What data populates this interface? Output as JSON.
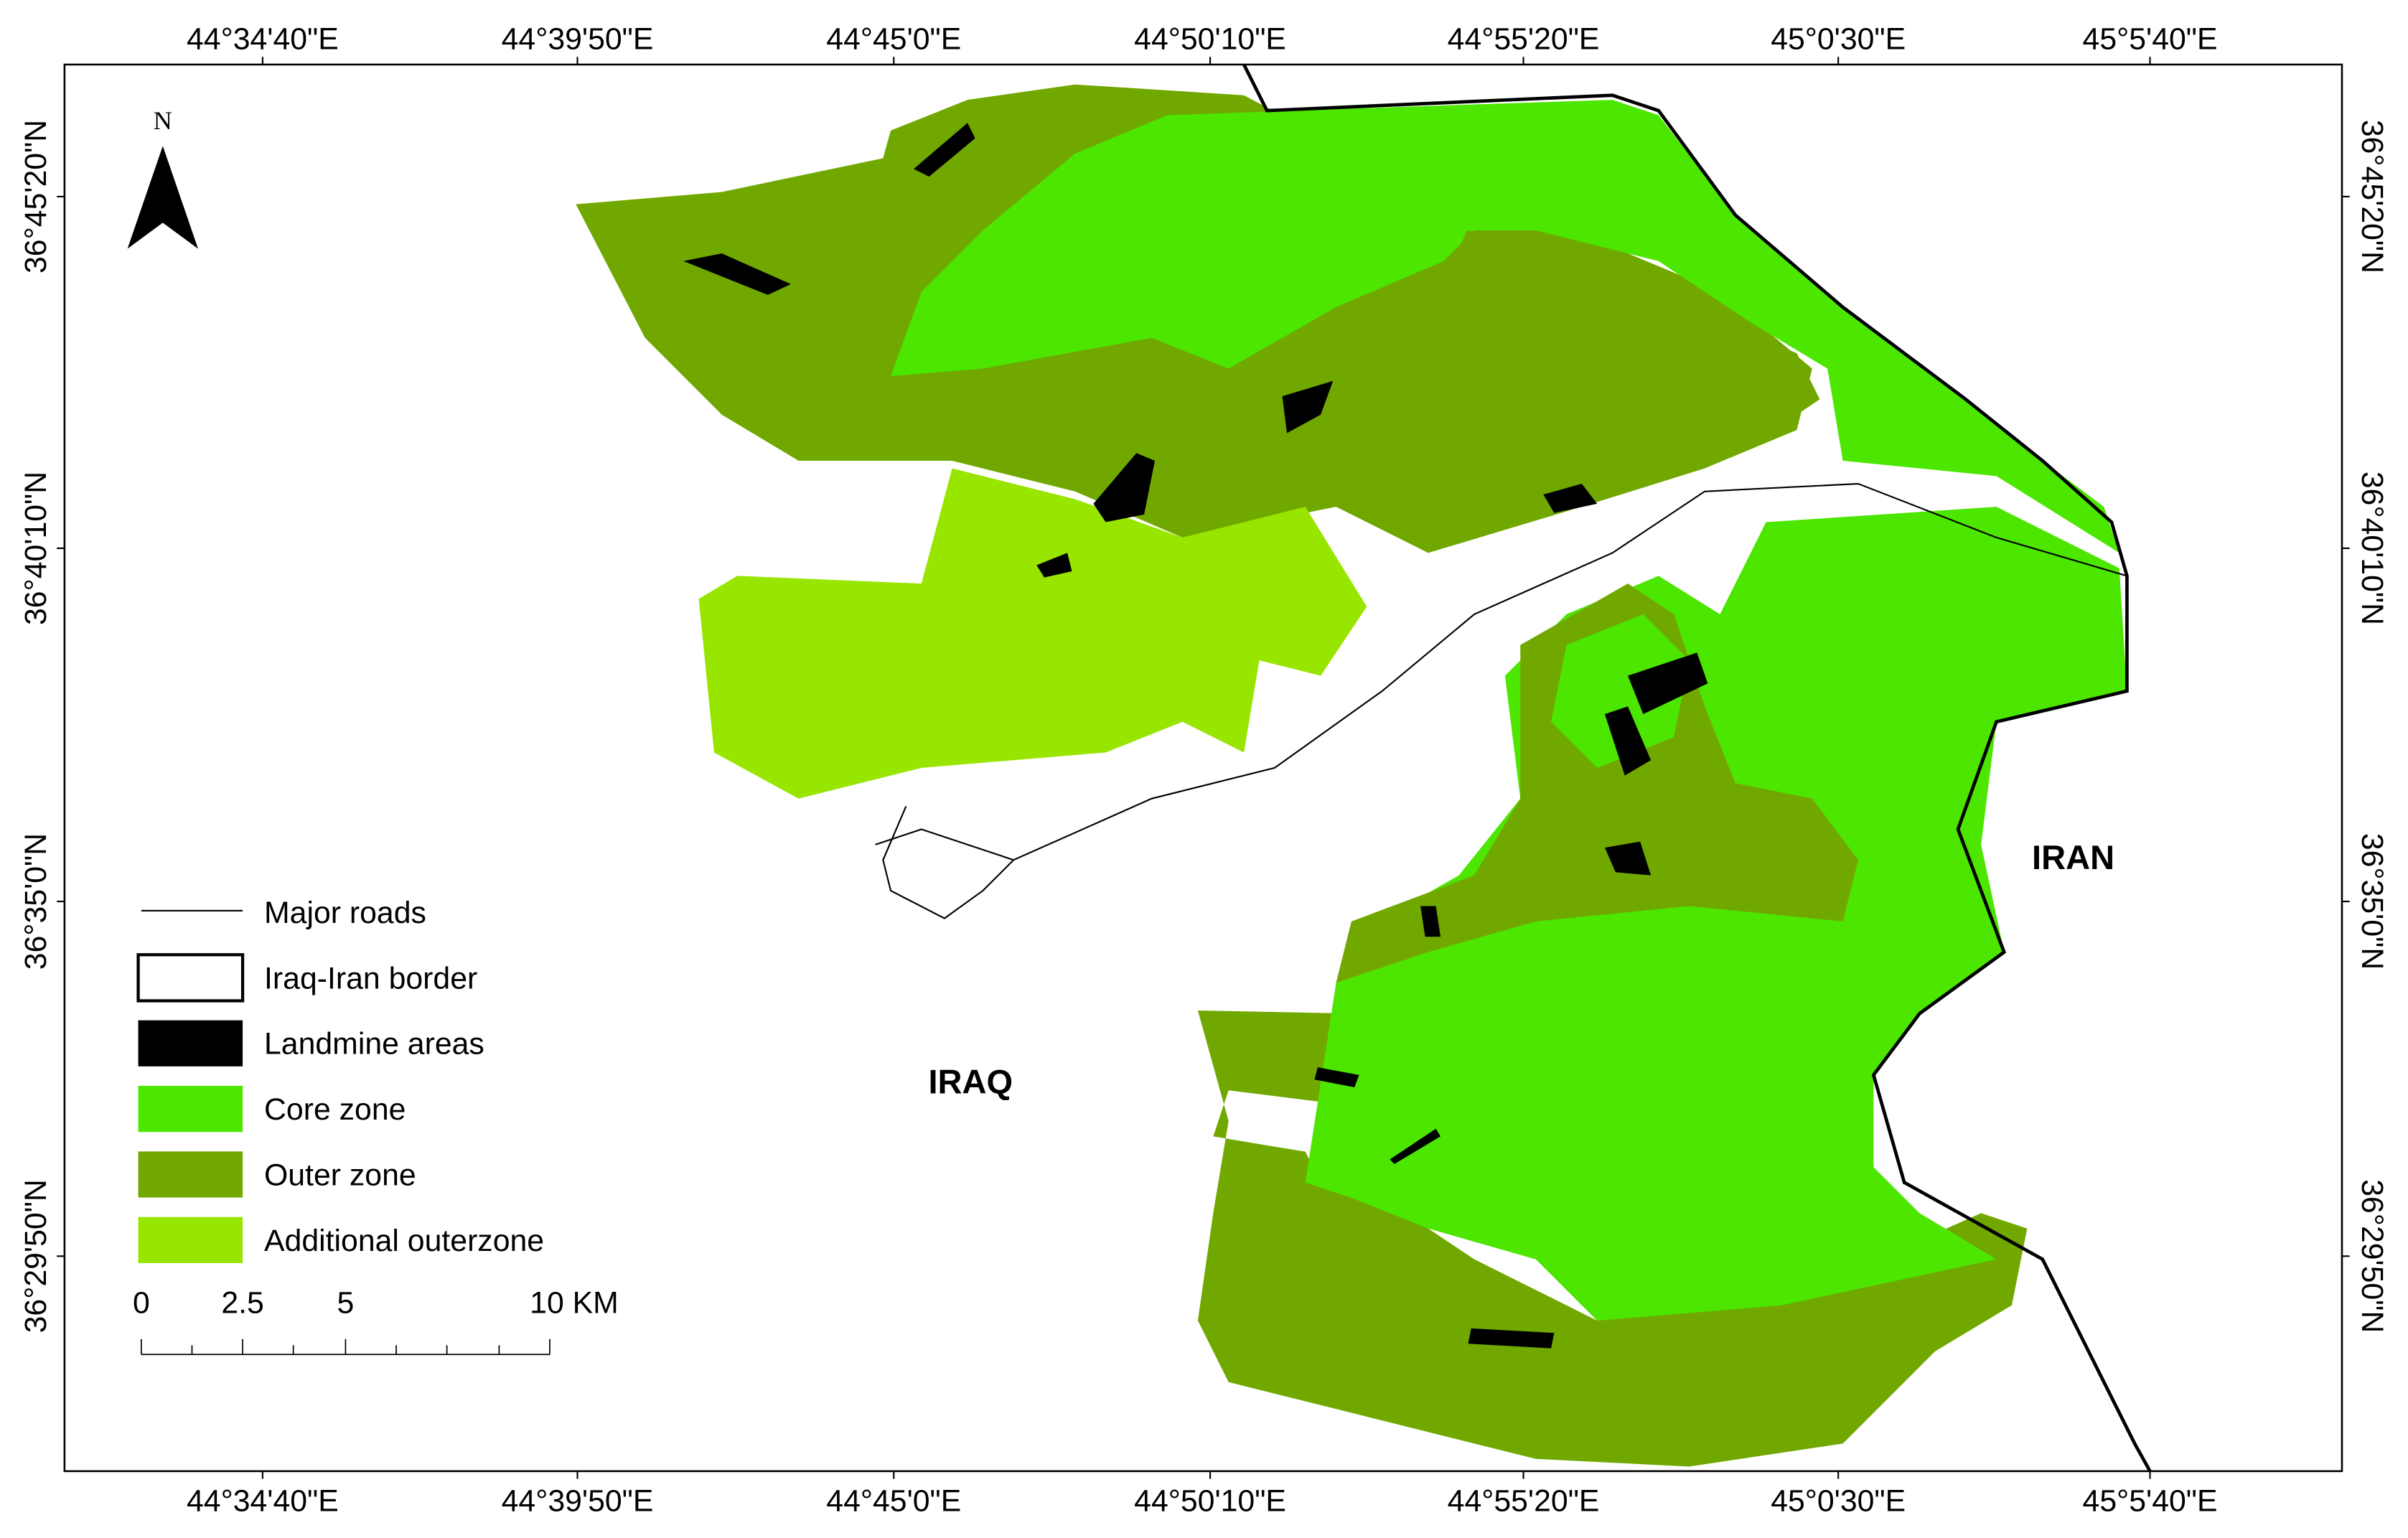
{
  "map": {
    "lon_labels": [
      "44°34'40\"E",
      "44°39'50\"E",
      "44°45'0\"E",
      "44°50'10\"E",
      "44°55'20\"E",
      "45°0'30\"E",
      "45°5'40\"E"
    ],
    "lat_labels": [
      "36°45'20\"N",
      "36°40'10\"N",
      "36°35'0\"N",
      "36°29'50\"N"
    ],
    "north": "N",
    "places": [
      "IRAQ",
      "IRAN"
    ],
    "legend": [
      {
        "label": "Major roads",
        "color": "#000000"
      },
      {
        "label": "Iraq-Iran border",
        "color": "#ffffff"
      },
      {
        "label": "Landmine areas",
        "color": "#000000"
      },
      {
        "label": "Core zone",
        "color": "#4ce600"
      },
      {
        "label": "Outer zone",
        "color": "#70a800"
      },
      {
        "label": "Additional outerzone",
        "color": "#98e600"
      }
    ],
    "scale": [
      "0",
      "2.5",
      "5",
      "10 KM"
    ]
  }
}
